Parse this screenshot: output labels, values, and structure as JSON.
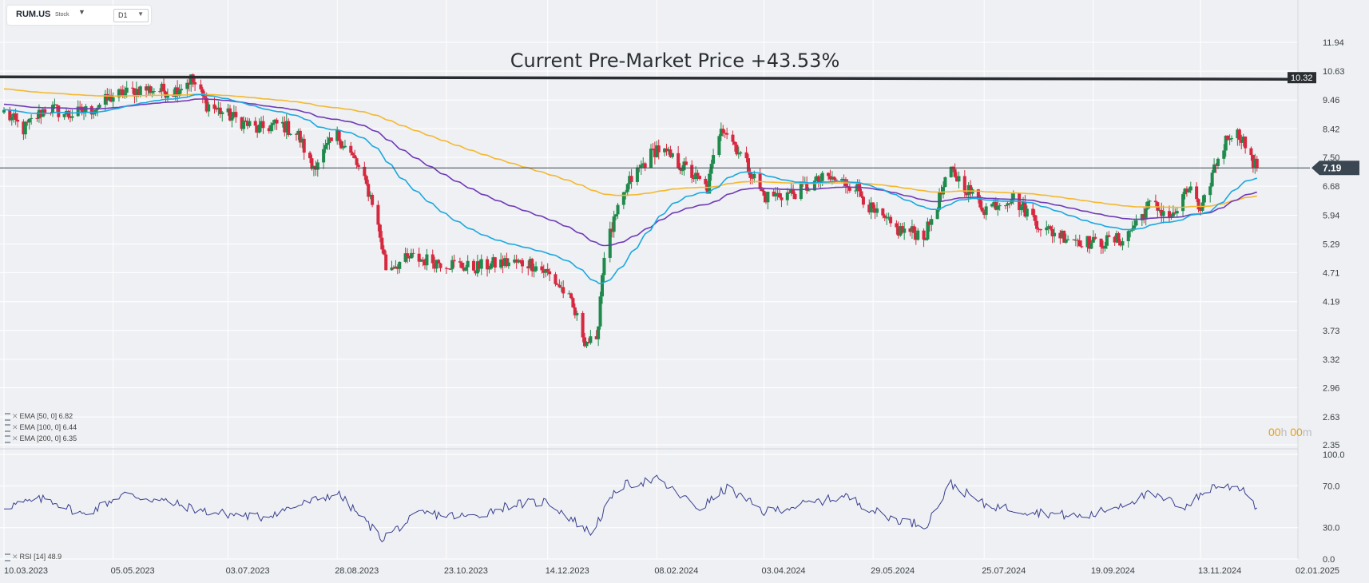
{
  "toolbar": {
    "symbol": "RUM.US",
    "instrument_type": "Stock",
    "timeframe": "D1"
  },
  "annotation": "Current Pre-Market Price +43.53%",
  "timer": {
    "hours": "00",
    "h_unit": "h",
    "minutes": "00",
    "m_unit": "m"
  },
  "indicators": [
    {
      "label": "EMA",
      "params": "[50,  0]",
      "value": "6.82",
      "color": "#1ba8e0"
    },
    {
      "label": "EMA",
      "params": "[100,  0]",
      "value": "6.44",
      "color": "#6f3ab6"
    },
    {
      "label": "EMA",
      "params": "[200,  0]",
      "value": "6.35",
      "color": "#f5b82e"
    }
  ],
  "rsi_label": {
    "label": "RSI",
    "params": "[14]",
    "value": "48.9",
    "color": "#3a3f8f"
  },
  "colors": {
    "up": "#1f8a4c",
    "down": "#d6283f",
    "background": "#eef0f3",
    "grid": "#ffffff",
    "resistance": "#2a2d31",
    "current_price_tag": "#3a4652"
  },
  "chart_data": {
    "type": "candlestick",
    "price_axis": {
      "scale": "log",
      "ticks": [
        "11.94",
        "10.63",
        "9.46",
        "8.42",
        "7.50",
        "6.68",
        "5.94",
        "5.29",
        "4.71",
        "4.19",
        "3.73",
        "3.32",
        "2.96",
        "2.63",
        "2.35"
      ]
    },
    "rsi_axis": {
      "range": [
        0,
        100
      ],
      "ticks": [
        "100.0",
        "70.0",
        "30.0",
        "0.0"
      ]
    },
    "date_ticks": [
      "10.03.2023",
      "05.05.2023",
      "03.07.2023",
      "28.08.2023",
      "23.10.2023",
      "14.12.2023",
      "08.02.2024",
      "03.04.2024",
      "29.05.2024",
      "25.07.2024",
      "19.09.2024",
      "13.11.2024",
      "02.01.2025"
    ],
    "date_range": [
      "2023-03-10",
      "2025-01-02"
    ],
    "horizontal_lines": [
      {
        "name": "resistance",
        "value": 10.32,
        "label": "10.32"
      },
      {
        "name": "current",
        "value": 7.19,
        "label": "7.19"
      }
    ],
    "close_anchors": [
      [
        "2023-03-10",
        9.0
      ],
      [
        "2023-03-20",
        8.4
      ],
      [
        "2023-04-01",
        9.2
      ],
      [
        "2023-04-12",
        8.9
      ],
      [
        "2023-04-24",
        9.1
      ],
      [
        "2023-05-05",
        9.6
      ],
      [
        "2023-05-20",
        9.9
      ],
      [
        "2023-06-05",
        9.8
      ],
      [
        "2023-06-14",
        10.3
      ],
      [
        "2023-06-22",
        9.3
      ],
      [
        "2023-07-03",
        8.9
      ],
      [
        "2023-07-18",
        8.4
      ],
      [
        "2023-07-30",
        8.6
      ],
      [
        "2023-08-08",
        8.2
      ],
      [
        "2023-08-15",
        7.2
      ],
      [
        "2023-08-28",
        8.2
      ],
      [
        "2023-09-06",
        7.4
      ],
      [
        "2023-09-15",
        6.3
      ],
      [
        "2023-09-22",
        4.8
      ],
      [
        "2023-10-05",
        5.0
      ],
      [
        "2023-10-23",
        4.9
      ],
      [
        "2023-11-05",
        4.8
      ],
      [
        "2023-11-20",
        4.9
      ],
      [
        "2023-12-05",
        4.9
      ],
      [
        "2023-12-14",
        4.7
      ],
      [
        "2023-12-24",
        4.3
      ],
      [
        "2024-01-02",
        3.6
      ],
      [
        "2024-01-08",
        3.5
      ],
      [
        "2024-01-12",
        5.1
      ],
      [
        "2024-01-25",
        6.8
      ],
      [
        "2024-02-08",
        7.8
      ],
      [
        "2024-02-22",
        7.2
      ],
      [
        "2024-03-05",
        6.6
      ],
      [
        "2024-03-12",
        8.6
      ],
      [
        "2024-03-22",
        7.6
      ],
      [
        "2024-04-03",
        6.4
      ],
      [
        "2024-04-18",
        6.5
      ],
      [
        "2024-05-05",
        6.9
      ],
      [
        "2024-05-20",
        6.7
      ],
      [
        "2024-05-29",
        6.0
      ],
      [
        "2024-06-10",
        5.6
      ],
      [
        "2024-06-25",
        5.5
      ],
      [
        "2024-07-08",
        7.1
      ],
      [
        "2024-07-25",
        6.1
      ],
      [
        "2024-08-08",
        6.4
      ],
      [
        "2024-08-25",
        5.6
      ],
      [
        "2024-09-10",
        5.4
      ],
      [
        "2024-09-19",
        5.3
      ],
      [
        "2024-10-05",
        5.4
      ],
      [
        "2024-10-18",
        6.2
      ],
      [
        "2024-10-30",
        5.9
      ],
      [
        "2024-11-08",
        6.7
      ],
      [
        "2024-11-13",
        5.9
      ],
      [
        "2024-11-20",
        7.2
      ],
      [
        "2024-11-28",
        8.3
      ],
      [
        "2024-12-04",
        8.2
      ],
      [
        "2024-12-09",
        7.4
      ],
      [
        "2024-12-12",
        7.19
      ]
    ],
    "rsi_anchors": [
      [
        "2023-03-10",
        50
      ],
      [
        "2023-04-01",
        58
      ],
      [
        "2023-04-20",
        42
      ],
      [
        "2023-05-10",
        62
      ],
      [
        "2023-06-01",
        55
      ],
      [
        "2023-06-22",
        45
      ],
      [
        "2023-07-20",
        40
      ],
      [
        "2023-08-28",
        63
      ],
      [
        "2023-09-20",
        20
      ],
      [
        "2023-10-10",
        44
      ],
      [
        "2023-11-05",
        40
      ],
      [
        "2023-11-25",
        52
      ],
      [
        "2023-12-14",
        55
      ],
      [
        "2024-01-05",
        25
      ],
      [
        "2024-01-20",
        70
      ],
      [
        "2024-02-08",
        76
      ],
      [
        "2024-03-01",
        48
      ],
      [
        "2024-03-15",
        68
      ],
      [
        "2024-04-03",
        45
      ],
      [
        "2024-05-15",
        60
      ],
      [
        "2024-06-05",
        40
      ],
      [
        "2024-06-25",
        32
      ],
      [
        "2024-07-08",
        72
      ],
      [
        "2024-07-25",
        52
      ],
      [
        "2024-08-15",
        46
      ],
      [
        "2024-09-15",
        40
      ],
      [
        "2024-10-18",
        62
      ],
      [
        "2024-11-05",
        50
      ],
      [
        "2024-11-20",
        70
      ],
      [
        "2024-12-05",
        68
      ],
      [
        "2024-12-12",
        48.9
      ]
    ]
  }
}
